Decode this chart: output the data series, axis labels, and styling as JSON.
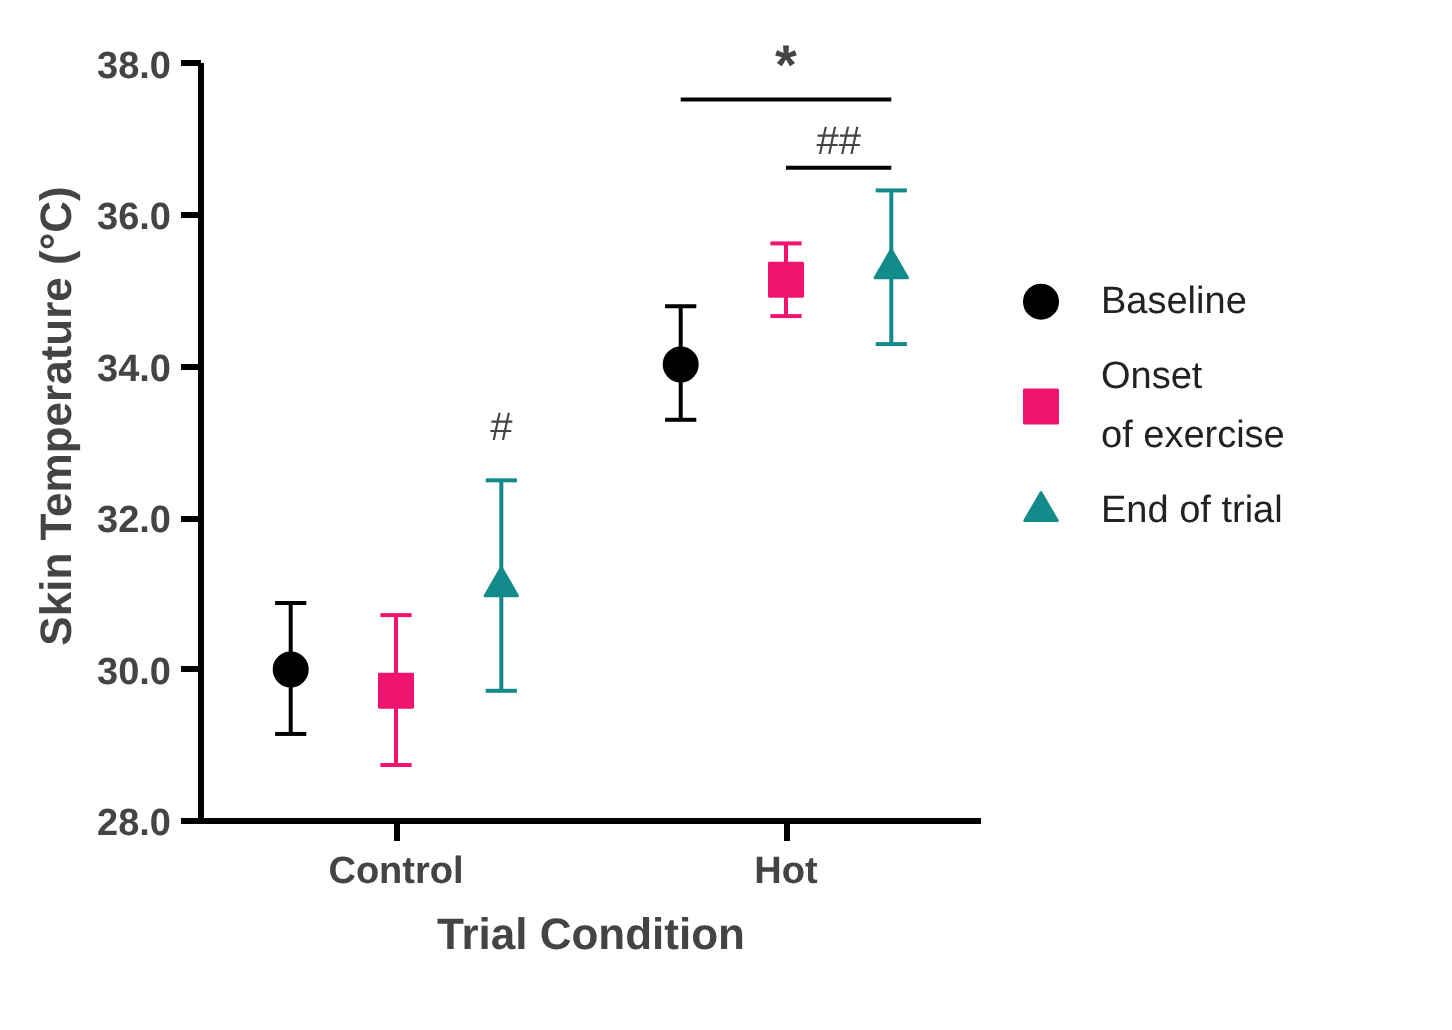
{
  "chart_data": {
    "type": "scatter",
    "xlabel": "Trial Condition",
    "ylabel": "Skin Temperature (°C)",
    "categories": [
      "Control",
      "Hot"
    ],
    "series": [
      {
        "name": "Baseline",
        "color": "#000000",
        "marker": "circle",
        "values": [
          30.0,
          34.03
        ],
        "errors": [
          [
            29.15,
            30.88
          ],
          [
            33.3,
            34.8
          ]
        ]
      },
      {
        "name": "Onset\nof exercise",
        "color": "#f0136f",
        "marker": "square",
        "values": [
          29.72,
          35.15
        ],
        "errors": [
          [
            28.74,
            30.72
          ],
          [
            34.67,
            35.63
          ]
        ]
      },
      {
        "name": "End of trial",
        "color": "#138b8b",
        "marker": "triangle",
        "values": [
          31.1,
          35.3
        ],
        "errors": [
          [
            29.72,
            32.5
          ],
          [
            34.3,
            36.33
          ]
        ]
      }
    ],
    "annotations": [
      "*",
      "##",
      "#"
    ],
    "ylim": [
      28.0,
      38.0
    ],
    "yticks": [
      {
        "value": 28,
        "label": "28.0"
      },
      {
        "value": 30,
        "label": "30.0"
      },
      {
        "value": 32,
        "label": "32.0"
      },
      {
        "value": 34,
        "label": "34.0"
      },
      {
        "value": 36,
        "label": "36.0"
      },
      {
        "value": 38,
        "label": "38.0"
      }
    ],
    "grid": false,
    "legend": "right"
  }
}
